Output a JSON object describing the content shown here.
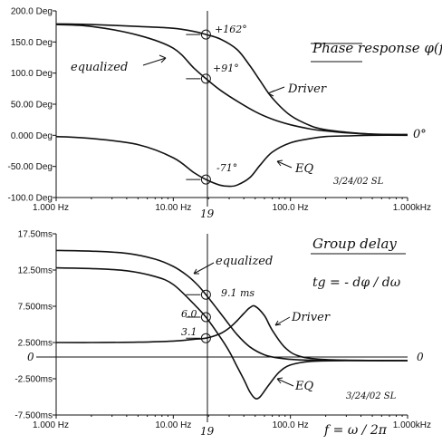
{
  "chart_data": [
    {
      "type": "line",
      "title": "Phase response φ(f)",
      "xscale": "log",
      "xlim": [
        1,
        1000
      ],
      "ylim": [
        -100,
        200
      ],
      "xticks": [
        "1.000 Hz",
        "10.00 Hz",
        "100.0 Hz",
        "1.000kHz"
      ],
      "yticks": [
        "200.0 Deg",
        "150.0 Deg",
        "100.0 Deg",
        "50.00 Deg",
        "0.000 Deg",
        "-50.00 Deg",
        "-100.0 Deg"
      ],
      "ytick_values": [
        200,
        150,
        100,
        50,
        0,
        -50,
        -100
      ],
      "xmarker_label": "19",
      "xmarker": 19,
      "grid": false,
      "series": [
        {
          "name": "equalized",
          "x": [
            1,
            2,
            5,
            10,
            15,
            19,
            25,
            35,
            50,
            70,
            100,
            150,
            200,
            300,
            500,
            1000
          ],
          "y": [
            178,
            175,
            161,
            140,
            108,
            91,
            73,
            55,
            38,
            26,
            17,
            10,
            7,
            4,
            2,
            1
          ]
        },
        {
          "name": "Driver",
          "x": [
            1,
            2,
            5,
            10,
            15,
            19,
            25,
            35,
            45,
            55,
            70,
            100,
            150,
            200,
            300,
            500,
            1000
          ],
          "y": [
            179,
            178,
            175,
            172,
            167,
            162,
            155,
            138,
            112,
            88,
            60,
            32,
            15,
            9,
            5,
            2,
            1
          ]
        },
        {
          "name": "EQ",
          "x": [
            1,
            2,
            5,
            10,
            15,
            19,
            25,
            30,
            35,
            45,
            55,
            70,
            100,
            150,
            200,
            300,
            500,
            1000
          ],
          "y": [
            -2,
            -5,
            -15,
            -36,
            -60,
            -71,
            -80,
            -82,
            -80,
            -68,
            -48,
            -27,
            -12,
            -5,
            -2,
            -1,
            0,
            0
          ]
        }
      ],
      "annotations": [
        {
          "text": "+162°",
          "x": 19,
          "y": 162
        },
        {
          "text": "+91°",
          "x": 19,
          "y": 91
        },
        {
          "text": "-71°",
          "x": 19,
          "y": -71
        },
        {
          "text": "0°"
        },
        {
          "text": "3/24/02 SL"
        }
      ]
    },
    {
      "type": "line",
      "title": "Group delay",
      "formula": "tg = - dφ / dω",
      "xscale": "log",
      "xlim": [
        1,
        1000
      ],
      "ylim": [
        -7.5,
        17.5
      ],
      "xticks": [
        "1.000 Hz",
        "10.00 Hz",
        "100.0 Hz",
        "1.000kHz"
      ],
      "xlabel": "f = ω / 2π",
      "yticks": [
        "17.50ms",
        "12.50ms",
        "7.500ms",
        "2.500ms",
        "-2.500ms",
        "-7.500ms"
      ],
      "ytick_values": [
        17.5,
        12.5,
        7.5,
        2.5,
        -2.5,
        -7.5
      ],
      "zero_label": "0",
      "xmarker_label": "19",
      "xmarker": 19,
      "grid": false,
      "series": [
        {
          "name": "equalized",
          "x": [
            1,
            2,
            4,
            7,
            10,
            13,
            16,
            19,
            23,
            28,
            35,
            45,
            60,
            80,
            120,
            200,
            400,
            1000
          ],
          "y": [
            15.2,
            15.1,
            14.8,
            14.0,
            13.0,
            11.8,
            10.5,
            9.1,
            7.4,
            5.6,
            3.6,
            1.9,
            0.8,
            0.35,
            0.1,
            0.03,
            0.01,
            0
          ]
        },
        {
          "name": "Driver",
          "x": [
            1,
            2,
            5,
            10,
            15,
            19,
            25,
            30,
            35,
            40,
            45,
            50,
            60,
            70,
            90,
            120,
            200,
            500,
            1000
          ],
          "y": [
            2.5,
            2.5,
            2.55,
            2.7,
            2.95,
            3.1,
            3.7,
            4.5,
            5.5,
            6.5,
            7.3,
            7.5,
            6.2,
            4.2,
            1.8,
            0.6,
            0.15,
            0.02,
            0
          ]
        },
        {
          "name": "EQ",
          "x": [
            1,
            2,
            4,
            7,
            10,
            15,
            19,
            25,
            30,
            35,
            40,
            45,
            50,
            55,
            65,
            80,
            100,
            150,
            300,
            1000
          ],
          "y": [
            12.8,
            12.7,
            12.4,
            11.6,
            10.5,
            7.8,
            6.0,
            3.3,
            1.3,
            -0.8,
            -2.6,
            -4.3,
            -5.2,
            -5.0,
            -3.4,
            -1.6,
            -0.6,
            -0.1,
            0,
            0
          ]
        }
      ],
      "annotations": [
        {
          "text": "9.1 ms",
          "x": 19,
          "y": 9.1
        },
        {
          "text": "6.0",
          "x": 19,
          "y": 6.0
        },
        {
          "text": "3.1",
          "x": 19,
          "y": 3.1
        },
        {
          "text": "0"
        },
        {
          "text": "3/24/02 SL"
        }
      ]
    }
  ]
}
